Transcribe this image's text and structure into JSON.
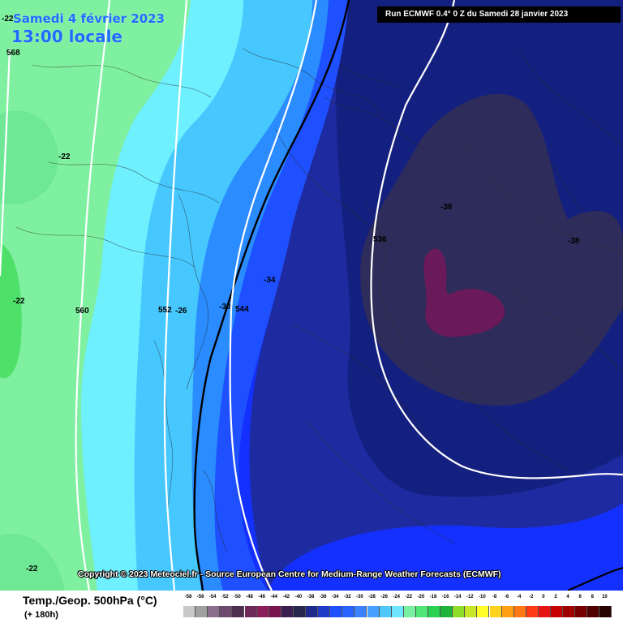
{
  "header": {
    "date": "Samedi 4 février 2023",
    "time": "13:00 locale",
    "run": "Run ECMWF 0.4° 0 Z du Samedi 28 janvier 2023"
  },
  "footer": {
    "copyright": "Copyright © 2023 Meteociel.fr - Source European Centre for Medium-Range Weather Forecasts (ECMWF)",
    "field": "Temp./Geop. 500hPa (°C)",
    "lead": "(+ 180h)"
  },
  "map_labels": {
    "t1": "-22",
    "t2": "-22",
    "t3": "-22",
    "t4": "-22",
    "t5": "-26",
    "t6": "-30",
    "t7": "-34",
    "t8": "-38",
    "t9": "-38",
    "g1": "568",
    "g2": "560",
    "g3": "552",
    "g4": "544",
    "g5": "536"
  },
  "legend": {
    "ticks": [
      "-58",
      "-56",
      "-54",
      "-52",
      "-50",
      "-48",
      "-46",
      "-44",
      "-42",
      "-40",
      "-38",
      "-36",
      "-34",
      "-32",
      "-30",
      "-28",
      "-26",
      "-24",
      "-22",
      "-20",
      "-18",
      "-16",
      "-14",
      "-12",
      "-10",
      "-8",
      "-6",
      "-4",
      "-2",
      "0",
      "2",
      "4",
      "6",
      "8",
      "10"
    ],
    "colors": [
      "#c8c8c8",
      "#a0a0a0",
      "#8c6e8c",
      "#6e4a6e",
      "#503050",
      "#6e2a5a",
      "#8c1e5a",
      "#7a1450",
      "#3c1e50",
      "#28284e",
      "#1e2a8c",
      "#1e3cc8",
      "#1e50ff",
      "#2a64ff",
      "#3c82ff",
      "#46a0ff",
      "#50c8ff",
      "#6ee6ff",
      "#78f0a0",
      "#50e678",
      "#28d250",
      "#1eb43c",
      "#8cdc28",
      "#c8e628",
      "#ffff28",
      "#ffd21e",
      "#ffa014",
      "#ff7814",
      "#ff3c14",
      "#e61414",
      "#c80000",
      "#a00000",
      "#780000",
      "#500000",
      "#280000"
    ]
  },
  "colors": {
    "green_light": "#7ff0a0",
    "green_mid": "#6ee895",
    "green_dark": "#4fe06a",
    "cyan": "#6ef0ff",
    "light_blue": "#46c8ff",
    "mid_blue": "#2a8cff",
    "blue": "#1e50ff",
    "deep_blue": "#1430ff",
    "navy": "#1e2aa0",
    "dark_navy": "#142080",
    "slate": "#2e2c5a",
    "purple": "#6a1a5a"
  }
}
